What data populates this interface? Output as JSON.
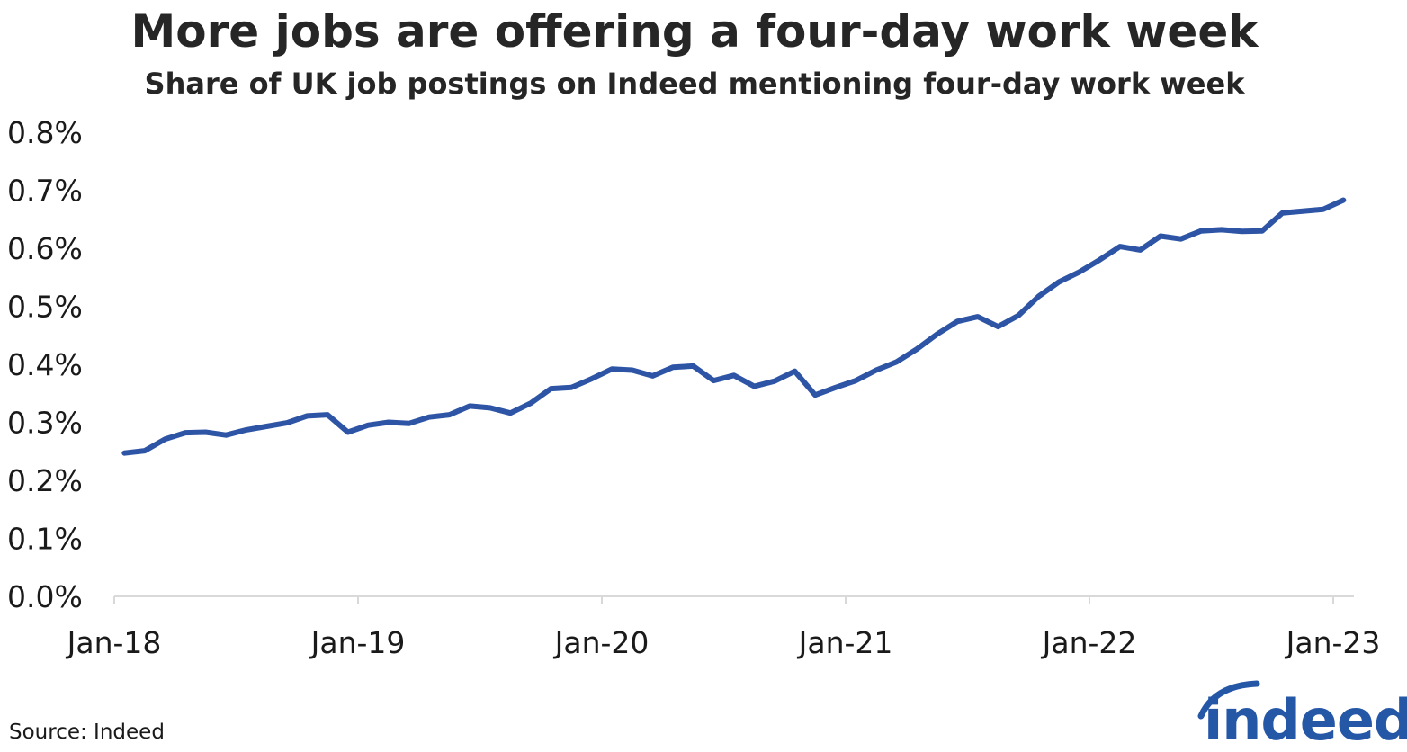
{
  "title": "More jobs are offering a four-day work week",
  "subtitle": "Share of UK job postings on Indeed mentioning four-day work week",
  "source": "Source: Indeed",
  "logo": {
    "text": "indeed",
    "color": "#2557a7"
  },
  "colors": {
    "line": "#2e55a5",
    "axis": "#d9d9d9"
  },
  "chart_data": {
    "type": "line",
    "title": "More jobs are offering a four-day work week",
    "subtitle": "Share of UK job postings on Indeed mentioning four-day work week",
    "xlabel": "",
    "ylabel": "",
    "ylim": [
      0,
      0.8
    ],
    "yticks": [
      "0.0%",
      "0.1%",
      "0.2%",
      "0.3%",
      "0.4%",
      "0.5%",
      "0.6%",
      "0.7%",
      "0.8%"
    ],
    "xticks": [
      "Jan-18",
      "Jan-19",
      "Jan-20",
      "Jan-21",
      "Jan-22",
      "Jan-23"
    ],
    "grid": false,
    "legend": "none",
    "series": [
      {
        "x": [
          "2018-01",
          "2018-02",
          "2018-03",
          "2018-04",
          "2018-05",
          "2018-06",
          "2018-07",
          "2018-08",
          "2018-09",
          "2018-10",
          "2018-11",
          "2018-12",
          "2019-01",
          "2019-02",
          "2019-03",
          "2019-04",
          "2019-05",
          "2019-06",
          "2019-07",
          "2019-08",
          "2019-09",
          "2019-10",
          "2019-11",
          "2019-12",
          "2020-01",
          "2020-02",
          "2020-03",
          "2020-04",
          "2020-05",
          "2020-06",
          "2020-07",
          "2020-08",
          "2020-09",
          "2020-10",
          "2020-11",
          "2020-12",
          "2021-01",
          "2021-02",
          "2021-03",
          "2021-04",
          "2021-05",
          "2021-06",
          "2021-07",
          "2021-08",
          "2021-09",
          "2021-10",
          "2021-11",
          "2021-12",
          "2022-01",
          "2022-02",
          "2022-03",
          "2022-04",
          "2022-05",
          "2022-06",
          "2022-07",
          "2022-08",
          "2022-09",
          "2022-10",
          "2022-11",
          "2022-12",
          "2023-01"
        ],
        "values": [
          0.247,
          0.251,
          0.271,
          0.282,
          0.283,
          0.278,
          0.287,
          0.293,
          0.299,
          0.311,
          0.313,
          0.283,
          0.295,
          0.3,
          0.298,
          0.309,
          0.313,
          0.328,
          0.325,
          0.316,
          0.333,
          0.358,
          0.36,
          0.375,
          0.392,
          0.39,
          0.38,
          0.395,
          0.397,
          0.372,
          0.381,
          0.362,
          0.371,
          0.388,
          0.347,
          0.36,
          0.372,
          0.39,
          0.404,
          0.426,
          0.452,
          0.474,
          0.482,
          0.465,
          0.484,
          0.517,
          0.542,
          0.559,
          0.58,
          0.603,
          0.597,
          0.621,
          0.616,
          0.63,
          0.632,
          0.629,
          0.63,
          0.661,
          0.664,
          0.667,
          0.683
        ]
      }
    ]
  }
}
